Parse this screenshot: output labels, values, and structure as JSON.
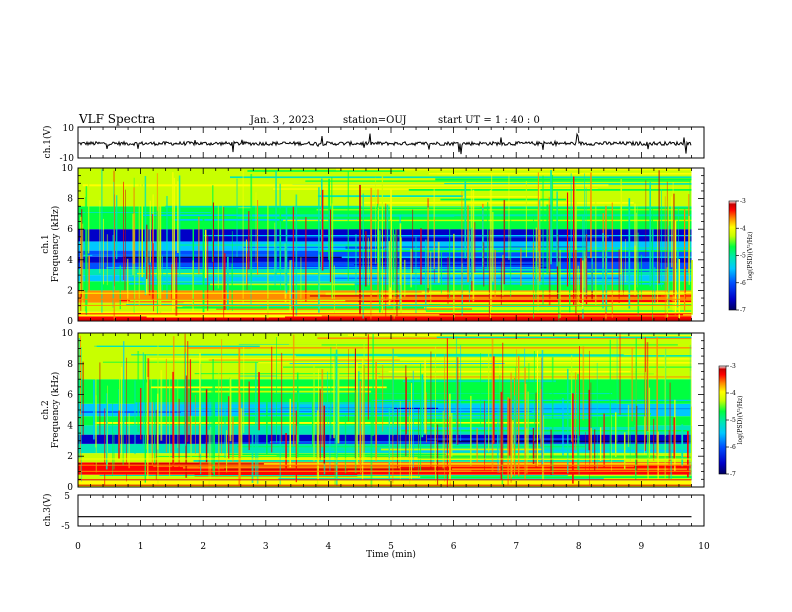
{
  "header": {
    "title": "VLF Spectra",
    "date": "Jan. 3 , 2023",
    "station": "station=OUJ",
    "start": "start UT = 1 : 40 : 0"
  },
  "colors": {
    "colormap": [
      "#000060",
      "#0000c8",
      "#0050ff",
      "#00c8ff",
      "#00e6b4",
      "#00ff40",
      "#c8ff00",
      "#ffff00",
      "#ff8c00",
      "#ff0000",
      "#c80000",
      "#ffffff"
    ],
    "trace": "#000000"
  },
  "chart_data": [
    {
      "type": "line",
      "name_label": "ch.1(V)",
      "ylim": [
        -10,
        10
      ],
      "yticks": [
        "10",
        "-10"
      ],
      "xlim": [
        0,
        10
      ],
      "description_values": {
        "baseline": 0,
        "typical_amplitude": 2,
        "max_spike": 7
      }
    },
    {
      "type": "heatmap",
      "ylabel": "Frequency (kHz)",
      "channel_label": "ch.1",
      "xlim": [
        0,
        10
      ],
      "ylim": [
        0,
        10
      ],
      "yticks": [
        "0",
        "2",
        "4",
        "6",
        "8",
        "10"
      ],
      "data_end_min": 9.8,
      "color_scale": {
        "label": "log(PSD)(V²/Hz)",
        "range": [
          -7,
          -3
        ],
        "ticks": [
          "-3",
          "-4",
          "-5",
          "-6",
          "-7"
        ]
      },
      "bands": [
        {
          "f": [
            0,
            0.3
          ],
          "level": -3.6
        },
        {
          "f": [
            0.3,
            0.6
          ],
          "level": -4.2
        },
        {
          "f": [
            0.6,
            1.2
          ],
          "level": -4.8
        },
        {
          "f": [
            1.2,
            2.0
          ],
          "level": -3.9
        },
        {
          "f": [
            2.0,
            2.6
          ],
          "level": -5.0
        },
        {
          "f": [
            2.6,
            3.0
          ],
          "level": -5.8
        },
        {
          "f": [
            3.0,
            3.4
          ],
          "level": -5.2
        },
        {
          "f": [
            3.4,
            3.8
          ],
          "level": -6.0
        },
        {
          "f": [
            3.8,
            4.2
          ],
          "level": -6.6
        },
        {
          "f": [
            4.2,
            4.6
          ],
          "level": -6.0
        },
        {
          "f": [
            4.6,
            5.2
          ],
          "level": -5.6
        },
        {
          "f": [
            5.2,
            6.0
          ],
          "level": -6.3
        },
        {
          "f": [
            6.0,
            7.5
          ],
          "level": -5.0
        },
        {
          "f": [
            7.5,
            10.0
          ],
          "level": -4.7
        }
      ]
    },
    {
      "type": "heatmap",
      "ylabel": "Frequency (kHz)",
      "channel_label": "ch.2",
      "xlim": [
        0,
        10
      ],
      "ylim": [
        0,
        10
      ],
      "yticks": [
        "0",
        "2",
        "4",
        "6",
        "8",
        "10"
      ],
      "data_end_min": 9.8,
      "color_scale": {
        "label": "log(PSD)(V²/Hz)",
        "range": [
          -7,
          -3
        ],
        "ticks": [
          "-3",
          "-4",
          "-5",
          "-6",
          "-7"
        ]
      },
      "bands": [
        {
          "f": [
            0,
            0.4
          ],
          "level": -4.1
        },
        {
          "f": [
            0.4,
            0.8
          ],
          "level": -4.8
        },
        {
          "f": [
            0.8,
            1.6
          ],
          "level": -3.6
        },
        {
          "f": [
            1.6,
            2.2
          ],
          "level": -4.6
        },
        {
          "f": [
            2.2,
            2.8
          ],
          "level": -5.3
        },
        {
          "f": [
            2.8,
            3.4
          ],
          "level": -6.4
        },
        {
          "f": [
            3.4,
            4.0
          ],
          "level": -5.5
        },
        {
          "f": [
            4.0,
            4.6
          ],
          "level": -5.0
        },
        {
          "f": [
            4.6,
            5.4
          ],
          "level": -5.8
        },
        {
          "f": [
            5.4,
            7.0
          ],
          "level": -5.1
        },
        {
          "f": [
            7.0,
            10.0
          ],
          "level": -4.8
        }
      ]
    },
    {
      "type": "line",
      "name_label": "ch.3(V)",
      "ylim": [
        -5,
        5
      ],
      "yticks": [
        "5",
        "-5"
      ],
      "xlim": [
        0,
        10
      ],
      "description_values": {
        "constant_level": -2
      }
    }
  ],
  "x_axis": {
    "label": "Time (min)",
    "ticks": [
      "0",
      "1",
      "2",
      "3",
      "4",
      "5",
      "6",
      "7",
      "8",
      "9",
      "10"
    ]
  }
}
